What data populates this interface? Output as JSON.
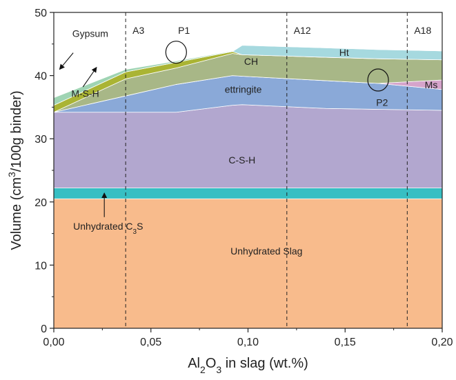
{
  "chart_data": {
    "type": "area",
    "xlabel": {
      "main": "Al",
      "sub1": "2",
      "mid": "O",
      "sub2": "3",
      "rest": " in slag (wt.%)"
    },
    "ylabel": {
      "pre": "Volume (cm",
      "sup": "3",
      "post": "/100g binder)"
    },
    "xlim": [
      0,
      0.2
    ],
    "ylim": [
      0,
      50
    ],
    "x_ticks": [
      {
        "value": 0.0,
        "label": "0,00"
      },
      {
        "value": 0.05,
        "label": "0,05"
      },
      {
        "value": 0.1,
        "label": "0,10"
      },
      {
        "value": 0.15,
        "label": "0,15"
      },
      {
        "value": 0.2,
        "label": "0,20"
      }
    ],
    "y_ticks": [
      {
        "value": 0,
        "label": "0"
      },
      {
        "value": 10,
        "label": "10"
      },
      {
        "value": 20,
        "label": "20"
      },
      {
        "value": 30,
        "label": "30"
      },
      {
        "value": 40,
        "label": "40"
      },
      {
        "value": 50,
        "label": "50"
      }
    ],
    "stacked": true,
    "series": [
      {
        "name": "Unhydrated Slag",
        "color": "#f8bb8c",
        "x": [
          0,
          0.2
        ],
        "values": [
          20.5,
          20.5
        ]
      },
      {
        "name": "Unhydrated C3S",
        "color": "#37bfc3",
        "x": [
          0,
          0.2
        ],
        "values": [
          1.7,
          1.7
        ]
      },
      {
        "name": "C-S-H",
        "color": "#b2a7cf",
        "x": [
          0,
          0.063,
          0.092,
          0.097,
          0.14,
          0.2
        ],
        "values": [
          12.0,
          12.0,
          13.1,
          13.2,
          12.6,
          12.3
        ]
      },
      {
        "name": "ettringite",
        "color": "#8aa9d8",
        "x": [
          0,
          0.063,
          0.092,
          0.097,
          0.14,
          0.167,
          0.2
        ],
        "values": [
          0.0,
          4.4,
          4.7,
          4.5,
          4.4,
          4.1,
          3.3
        ]
      },
      {
        "name": "Ms",
        "color": "#d5a4cb",
        "x": [
          0,
          0.167,
          0.2
        ],
        "values": [
          0,
          0,
          1.5
        ]
      },
      {
        "name": "CH",
        "color": "#a8b787",
        "x": [
          0,
          0.037,
          0.063,
          0.092,
          0.097,
          0.14,
          0.167,
          0.2
        ],
        "values": [
          0,
          2.7,
          2.6,
          3.5,
          3.4,
          3.7,
          3.9,
          3.2
        ]
      },
      {
        "name": "M-S-H",
        "color": "#aab434",
        "x": [
          0,
          0.037,
          0.063,
          0.092,
          0.097,
          0.2
        ],
        "values": [
          1.1,
          1.1,
          0.9,
          0.3,
          0,
          0
        ]
      },
      {
        "name": "Ht",
        "color": "#a6d9df",
        "x": [
          0,
          0.092,
          0.097,
          0.14,
          0.2
        ],
        "values": [
          0,
          0,
          1.5,
          1.5,
          1.4
        ]
      },
      {
        "name": "Gypsum",
        "color": "#9fd4b3",
        "x": [
          0,
          0.037,
          0.063,
          0.092,
          0.097,
          0.2
        ],
        "values": [
          1.2,
          0.4,
          0.2,
          0.1,
          0,
          0
        ]
      }
    ],
    "vertical_lines": [
      {
        "x": 0.037,
        "label": "A3"
      },
      {
        "x": 0.12,
        "label": "A12"
      },
      {
        "x": 0.182,
        "label": "A18"
      }
    ],
    "annotations": [
      {
        "text": "P1",
        "circle_at": [
          0.063,
          43.7
        ]
      },
      {
        "text": "P2",
        "circle_at": [
          0.167,
          39.3
        ]
      }
    ],
    "region_labels": [
      {
        "text": "Gypsum",
        "x": 0.0095,
        "y": 46.1,
        "arrow_to": [
          0.003,
          41.0
        ]
      },
      {
        "text": "M-S-H",
        "x": 0.009,
        "y": 36.6,
        "arrow_to": [
          0.022,
          41.3
        ]
      },
      {
        "text": "CH",
        "x": 0.098,
        "y": 41.7
      },
      {
        "text": "ettringite",
        "x": 0.088,
        "y": 37.3
      },
      {
        "text": "C-S-H",
        "x": 0.09,
        "y": 26.1
      },
      {
        "text": "Ht",
        "x": 0.147,
        "y": 43.1
      },
      {
        "text": "Ms",
        "x": 0.191,
        "y": 38.0
      },
      {
        "text": "P1",
        "x": 0.064,
        "y": 46.6
      },
      {
        "text": "P2",
        "x": 0.166,
        "y": 35.2
      },
      {
        "text": "Unhydrated Slag",
        "x": 0.091,
        "y": 11.7
      },
      {
        "text": "Unhydrated C",
        "sub": "3",
        "rest": "S",
        "x": 0.01,
        "y": 15.6,
        "arrow_to": [
          0.026,
          21.4
        ]
      }
    ],
    "grid": false,
    "legend": "none"
  }
}
